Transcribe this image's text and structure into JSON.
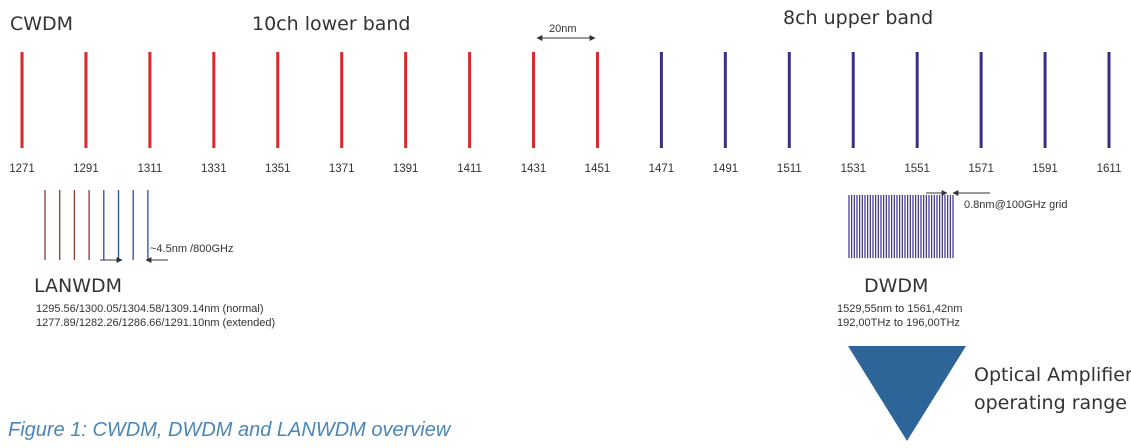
{
  "cwdm": {
    "title": "CWDM",
    "lower_band_label": "10ch lower band",
    "upper_band_label": "8ch upper band",
    "spacing_label": "20nm",
    "lower_color": "#e0262a",
    "upper_color": "#3a2f86",
    "channels_nm": [
      1271,
      1291,
      1311,
      1331,
      1351,
      1371,
      1391,
      1411,
      1431,
      1451,
      1471,
      1491,
      1511,
      1531,
      1551,
      1571,
      1591,
      1611
    ],
    "lower_count": 10
  },
  "lanwdm": {
    "title": "LANWDM",
    "spacing_label": "~4.5nm /800GHz",
    "normal_line": "1295.56/1300.05/1304.58/1309.14nm (normal)",
    "extended_line": "1277.89/1282.26/1286.66/1291.10nm (extended)",
    "line_colors": [
      "#8b3a2e",
      "#8b3a2e",
      "#8b3a2e",
      "#8b3a2e",
      "#1f4fa8",
      "#1f4fa8",
      "#1f4fa8",
      "#1f4fa8"
    ]
  },
  "dwdm": {
    "title": "DWDM",
    "spacing_label": "0.8nm@100GHz grid",
    "range_nm": "1529,55nm to 1561,42nm",
    "range_thz": "192,00THz  to 196,00THz",
    "line_color": "#3a2f86",
    "line_count": 40
  },
  "amplifier": {
    "label_line1": "Optical Amplifier",
    "label_line2": "operating range",
    "color": "#2e6599"
  },
  "caption": "Figure 1: CWDM, DWDM and LANWDM overview"
}
